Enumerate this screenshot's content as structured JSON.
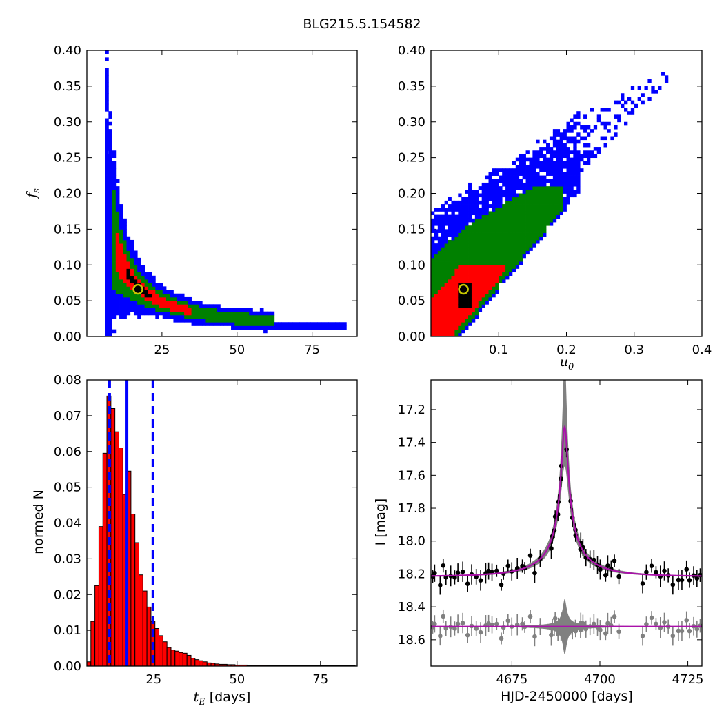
{
  "figure": {
    "title": "BLG215.5.154582"
  },
  "chart_data": [
    {
      "id": "fs_vs_tE",
      "type": "heatmap",
      "xlabel": "",
      "ylabel": "f_s",
      "xlim": [
        0,
        90
      ],
      "ylim": [
        0,
        0.4
      ],
      "xticks": [
        25,
        50,
        75
      ],
      "yticks": [
        0,
        0.05,
        0.1,
        0.15,
        0.2,
        0.25,
        0.3,
        0.35,
        0.4
      ],
      "xtick_labels": [
        "25",
        "50",
        "75"
      ],
      "ytick_labels": [
        "0.00",
        "0.05",
        "0.10",
        "0.15",
        "0.20",
        "0.25",
        "0.30",
        "0.35",
        "0.40"
      ],
      "region_colors": {
        "outer": "#0000ff",
        "middle": "#008000",
        "inner": "#ff0000",
        "core": "#000000"
      },
      "curve": "fs = 1.15 / tE",
      "outer_tE_range": [
        6,
        86
      ],
      "best_fit": {
        "tE": 17,
        "fs": 0.066
      }
    },
    {
      "id": "fs_vs_u0",
      "type": "heatmap",
      "xlabel": "u_0",
      "ylabel": "",
      "xlim": [
        0,
        0.4
      ],
      "ylim": [
        0,
        0.4
      ],
      "xticks": [
        0.1,
        0.2,
        0.3,
        0.4
      ],
      "yticks": [
        0,
        0.05,
        0.1,
        0.15,
        0.2,
        0.25,
        0.3,
        0.35,
        0.4
      ],
      "xtick_labels": [
        "0.1",
        "0.2",
        "0.3",
        "0.4"
      ],
      "ytick_labels": [
        "0.00",
        "0.05",
        "0.10",
        "0.15",
        "0.20",
        "0.25",
        "0.30",
        "0.35",
        "0.40"
      ],
      "region_colors": {
        "outer": "#0000ff",
        "middle": "#008000",
        "inner": "#ff0000",
        "core": "#000000"
      },
      "relation": "fs ≈ 1.15 · u0 (band)",
      "best_fit": {
        "u0": 0.048,
        "fs": 0.066
      }
    },
    {
      "id": "tE_histogram",
      "type": "bar",
      "xlabel": "t_E [days]",
      "ylabel": "normed N",
      "xlim": [
        5,
        86
      ],
      "ylim": [
        0,
        0.08
      ],
      "xticks": [
        25,
        50,
        75
      ],
      "yticks": [
        0,
        0.01,
        0.02,
        0.03,
        0.04,
        0.05,
        0.06,
        0.07,
        0.08
      ],
      "xtick_labels": [
        "25",
        "50",
        "75"
      ],
      "ytick_labels": [
        "0.00",
        "0.01",
        "0.02",
        "0.03",
        "0.04",
        "0.05",
        "0.06",
        "0.07",
        "0.08"
      ],
      "bar_color": "#ff0000",
      "bins": {
        "start": 5,
        "width": 1.2
      },
      "values": [
        0.0012,
        0.0125,
        0.0225,
        0.039,
        0.0595,
        0.0755,
        0.072,
        0.0655,
        0.061,
        0.048,
        0.0545,
        0.0425,
        0.0345,
        0.0255,
        0.021,
        0.0165,
        0.0125,
        0.0105,
        0.0085,
        0.0068,
        0.0052,
        0.0045,
        0.0042,
        0.0038,
        0.0036,
        0.003,
        0.0022,
        0.0018,
        0.0015,
        0.0012,
        0.0009,
        0.0008,
        0.0006,
        0.0005,
        0.0005,
        0.0004,
        0.0004,
        0.0003,
        0.0003,
        0.0003,
        0.0002,
        0.0002,
        0.0002,
        0.0002,
        0.0002,
        0.0001,
        0.0001,
        0.0001,
        0.0001,
        0.0001,
        0.0001,
        0.0001,
        0.0001,
        0.0001,
        0.0001,
        0.0001,
        0.0001,
        0.0001,
        0.0001,
        0.0001,
        0.0001,
        0.0001,
        0.0001,
        0.0001,
        0.0001,
        0.0001,
        0.0001
      ],
      "median_line": 17,
      "interval_lines": [
        11.8,
        24.8
      ],
      "line_color": "#0000ff"
    },
    {
      "id": "light_curve",
      "type": "line",
      "xlabel": "HJD-2450000 [days]",
      "ylabel": "I [mag]",
      "xlim": [
        4652,
        4729
      ],
      "ylim": [
        18.76,
        17.02
      ],
      "y_inverted": true,
      "xticks": [
        4675,
        4700,
        4725
      ],
      "yticks": [
        17.2,
        17.4,
        17.6,
        17.8,
        18.0,
        18.2,
        18.4,
        18.6
      ],
      "xtick_labels": [
        "4675",
        "4700",
        "4725"
      ],
      "ytick_labels": [
        "17.2",
        "17.4",
        "17.6",
        "17.8",
        "18.0",
        "18.2",
        "18.4",
        "18.6"
      ],
      "model": {
        "t0": 4690,
        "tE": 17,
        "u0": 0.048,
        "fs": 0.066,
        "I_base": 18.215
      },
      "model_color": "#aa11aa",
      "envelope_color": "#808080",
      "residual_offset": 18.52,
      "data_color": "#000000",
      "residual_color": "#808080"
    }
  ]
}
